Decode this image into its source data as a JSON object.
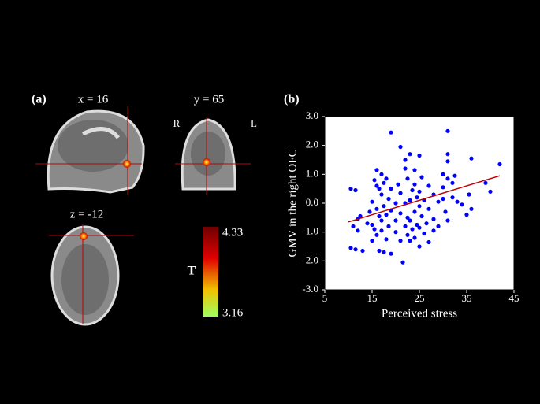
{
  "panel_a": {
    "label": "(a)",
    "x_slice": "x = 16",
    "y_slice": "y = 65",
    "z_slice": "z = -12",
    "right": "R",
    "left": "L",
    "colorbar": {
      "title": "T",
      "max": "4.33",
      "min": "3.16"
    }
  },
  "chart_data": {
    "type": "scatter",
    "label": "(b)",
    "x_label": "Perceived stress",
    "y_label": "GMV in the right OFC",
    "xlim": [
      5,
      45
    ],
    "xticks": [
      5,
      15,
      25,
      35,
      45
    ],
    "ylim": [
      -3,
      3
    ],
    "yticks": [
      {
        "value": -3,
        "label": "-3.0"
      },
      {
        "value": -2,
        "label": "-2.0"
      },
      {
        "value": -1,
        "label": "-1.0"
      },
      {
        "value": 0,
        "label": "0.0"
      },
      {
        "value": 1,
        "label": "1.0"
      },
      {
        "value": 2,
        "label": "2.0"
      },
      {
        "value": 3,
        "label": "3.0"
      }
    ],
    "color": "#0000ff",
    "x": [
      10.5,
      11,
      10.5,
      11.5,
      11.5,
      12,
      12.5,
      12,
      13,
      14,
      14.5,
      15,
      15,
      15,
      15.5,
      15.5,
      16,
      16,
      16,
      16,
      16.5,
      16.5,
      16.5,
      17,
      17,
      17,
      17,
      17.5,
      17.5,
      17.5,
      18,
      18,
      18,
      18.5,
      18.5,
      19,
      19,
      19,
      19,
      20,
      20,
      20,
      20.5,
      21,
      21,
      21,
      21,
      21.5,
      22,
      22,
      22,
      22,
      22.5,
      22.5,
      22.5,
      23,
      23,
      23,
      23,
      23.5,
      23.5,
      24,
      24,
      24,
      24,
      24.5,
      24.5,
      25,
      25,
      25,
      25,
      25,
      25.5,
      25.5,
      26,
      26,
      26.5,
      27,
      27,
      27,
      28,
      28,
      28,
      29,
      29,
      30,
      30,
      30,
      30.5,
      31,
      31,
      31,
      31,
      31,
      32,
      32,
      32.5,
      33,
      34,
      35,
      35.5,
      36,
      36,
      39,
      40,
      42
    ],
    "values": [
      0.5,
      -0.8,
      -1.55,
      -1.6,
      0.45,
      -0.55,
      -0.45,
      -0.95,
      -1.65,
      -0.7,
      -0.3,
      0.05,
      -0.75,
      -1.3,
      0.8,
      -0.9,
      1.15,
      0.6,
      -0.2,
      -1.1,
      0.5,
      -0.45,
      -1.65,
      1.0,
      0.3,
      -0.6,
      -0.95,
      0.7,
      -0.1,
      -1.7,
      0.85,
      -0.4,
      -1.25,
      0.15,
      -0.8,
      2.45,
      0.5,
      -0.25,
      -1.75,
      0.0,
      -0.6,
      -1.0,
      0.65,
      1.95,
      0.35,
      -0.35,
      -1.3,
      -2.05,
      1.5,
      1.2,
      0.0,
      -0.8,
      0.85,
      -0.5,
      -1.1,
      1.7,
      0.1,
      -0.6,
      -1.3,
      0.45,
      -0.9,
      1.15,
      0.65,
      -0.3,
      -1.2,
      0.2,
      -0.75,
      1.65,
      0.4,
      -0.1,
      -0.85,
      -1.5,
      0.9,
      -0.45,
      0.1,
      -1.05,
      -0.7,
      0.6,
      -0.2,
      -1.35,
      0.3,
      -0.55,
      -0.95,
      0.05,
      -0.8,
      1.0,
      0.55,
      0.15,
      -0.3,
      2.5,
      1.7,
      1.45,
      0.85,
      -0.6,
      0.7,
      0.2,
      0.95,
      0.05,
      -0.05,
      -0.4,
      0.3,
      1.55,
      -0.2,
      0.7,
      0.4,
      1.35
    ],
    "fit": {
      "x": [
        10,
        42
      ],
      "values": [
        -0.65,
        0.95
      ],
      "color": "#c00000"
    }
  }
}
